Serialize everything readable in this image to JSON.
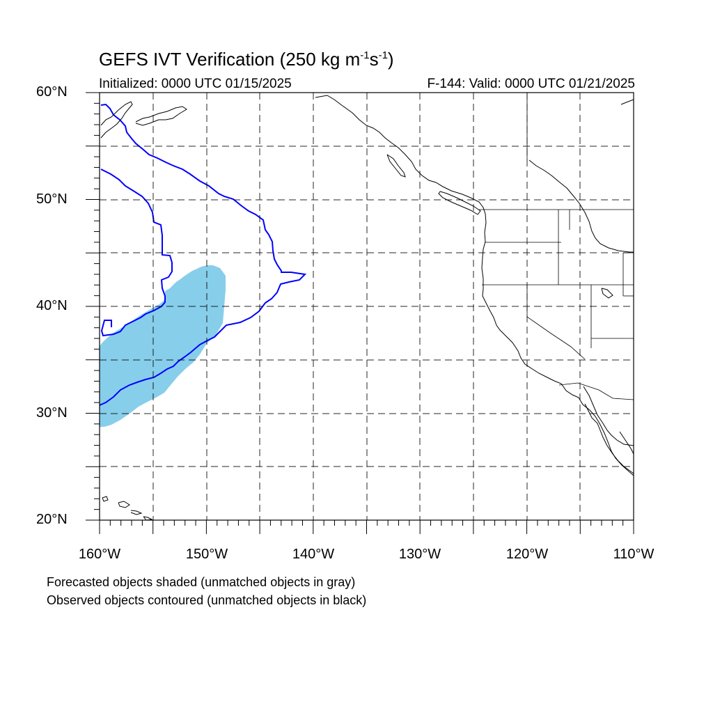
{
  "title": {
    "text": "GEFS IVT Verification (250 kg m",
    "exp1": "-1",
    "mid": "s",
    "exp2": "-1",
    "end": ")"
  },
  "subtitle": {
    "initialized": "Initialized: 0000 UTC 01/15/2025",
    "valid": "F-144: Valid: 0000 UTC 01/21/2025"
  },
  "axes": {
    "lat_labels": [
      "60°N",
      "50°N",
      "40°N",
      "30°N",
      "20°N"
    ],
    "lon_labels": [
      "160°W",
      "150°W",
      "140°W",
      "130°W",
      "120°W",
      "110°W"
    ],
    "lon_range": [
      -160,
      -110
    ],
    "lat_range": [
      20,
      60
    ],
    "grid": "dashed every 5°"
  },
  "legend": {
    "line1": "Forecasted objects shaded (unmatched objects in gray)",
    "line2": "Observed objects contoured (unmatched objects in black)"
  },
  "colors": {
    "forecast_fill": "#87ceeb",
    "observed_contour": "#0000ff",
    "coastline": "#000000",
    "grid": "#000000"
  }
}
